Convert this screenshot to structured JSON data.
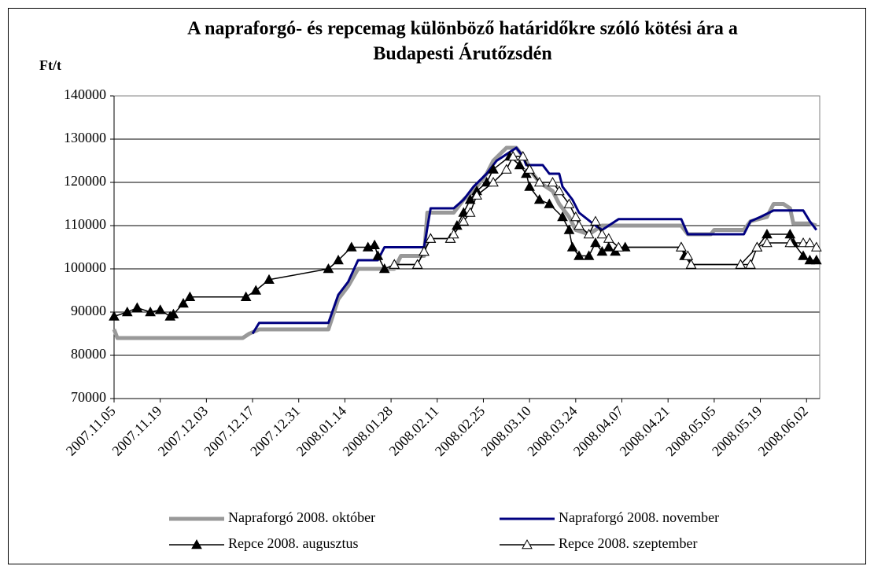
{
  "chart_data": {
    "type": "line",
    "title": [
      "A napraforgó- és repcemag különböző határidőkre szóló kötési ára a",
      "Budapesti Árutőzsdén"
    ],
    "ylabel": "Ft/t",
    "ylim": [
      70000,
      140000
    ],
    "yticks": [
      70000,
      80000,
      90000,
      100000,
      110000,
      120000,
      130000,
      140000
    ],
    "xlim": [
      "2007.11.05",
      "2008.06.06"
    ],
    "xticks": [
      "2007.11.05",
      "2007.11.19",
      "2007.12.03",
      "2007.12.17",
      "2007.12.31",
      "2008.01.14",
      "2008.01.28",
      "2008.02.11",
      "2008.02.25",
      "2008.03.10",
      "2008.03.24",
      "2008.04.07",
      "2008.04.21",
      "2008.05.05",
      "2008.05.19",
      "2008.06.02"
    ],
    "grid": true,
    "legend": "bottom",
    "series": [
      {
        "name": "Napraforgó 2008. október",
        "color": "#999999",
        "width": 5,
        "x": [
          "2007.11.05",
          "2007.11.06",
          "2007.12.14",
          "2007.12.16",
          "2007.12.19",
          "2008.01.09",
          "2008.01.12",
          "2008.01.15",
          "2008.01.18",
          "2008.01.29",
          "2008.01.31",
          "2008.02.07",
          "2008.02.08",
          "2008.02.16",
          "2008.02.19",
          "2008.02.22",
          "2008.02.26",
          "2008.02.28",
          "2008.03.03",
          "2008.03.06",
          "2008.03.09",
          "2008.03.11",
          "2008.03.13",
          "2008.03.17",
          "2008.03.19",
          "2008.03.22",
          "2008.03.24",
          "2008.03.28",
          "2008.04.01",
          "2008.04.25",
          "2008.04.27",
          "2008.05.04",
          "2008.05.05",
          "2008.05.14",
          "2008.05.16",
          "2008.05.21",
          "2008.05.23",
          "2008.05.26",
          "2008.05.28",
          "2008.05.29",
          "2008.06.03",
          "2008.06.05"
        ],
        "values": [
          86000,
          84000,
          84000,
          85000,
          86000,
          86000,
          93000,
          96000,
          100000,
          100000,
          103000,
          103000,
          113000,
          113000,
          116000,
          118000,
          122000,
          125000,
          128000,
          128000,
          125000,
          122000,
          120000,
          118000,
          115000,
          112000,
          109000,
          108000,
          110000,
          110000,
          108000,
          108000,
          109000,
          109000,
          111000,
          112000,
          115000,
          115000,
          114000,
          110500,
          110500,
          110000
        ]
      },
      {
        "name": "Napraforgó 2008. november",
        "color": "#000080",
        "width": 3,
        "x": [
          "2007.12.17",
          "2007.12.19",
          "2008.01.09",
          "2008.01.12",
          "2008.01.15",
          "2008.01.18",
          "2008.01.24",
          "2008.01.26",
          "2008.02.07",
          "2008.02.09",
          "2008.02.16",
          "2008.02.19",
          "2008.02.22",
          "2008.02.26",
          "2008.02.29",
          "2008.03.04",
          "2008.03.06",
          "2008.03.08",
          "2008.03.09",
          "2008.03.14",
          "2008.03.16",
          "2008.03.19",
          "2008.03.20",
          "2008.03.23",
          "2008.03.25",
          "2008.03.30",
          "2008.04.01",
          "2008.04.03",
          "2008.04.06",
          "2008.04.25",
          "2008.04.27",
          "2008.05.14",
          "2008.05.16",
          "2008.05.19",
          "2008.05.23",
          "2008.06.01",
          "2008.06.03",
          "2008.06.05"
        ],
        "values": [
          85000,
          87500,
          87500,
          94000,
          97000,
          102000,
          102000,
          105000,
          105000,
          114000,
          114000,
          116000,
          119000,
          122000,
          125000,
          127000,
          128000,
          126000,
          124000,
          124000,
          122000,
          122000,
          119000,
          116000,
          113000,
          110000,
          109000,
          110000,
          111500,
          111500,
          108000,
          108000,
          111000,
          112000,
          113500,
          113500,
          111000,
          109000
        ]
      },
      {
        "name": "Repce 2008. augusztus",
        "color": "#000000",
        "width": 1.5,
        "marker": "triangle",
        "marker_fill": "#000000",
        "x": [
          "2007.11.05",
          "2007.11.09",
          "2007.11.12",
          "2007.11.16",
          "2007.11.19",
          "2007.11.22",
          "2007.11.23",
          "2007.11.26",
          "2007.11.28",
          "2007.12.15",
          "2007.12.18",
          "2007.12.22",
          "2008.01.09",
          "2008.01.12",
          "2008.01.16",
          "2008.01.21",
          "2008.01.23",
          "2008.01.24",
          "2008.01.26",
          "2008.01.29",
          "2008.02.05",
          "2008.02.07",
          "2008.02.09",
          "2008.02.15",
          "2008.02.17",
          "2008.02.19",
          "2008.02.21",
          "2008.02.23",
          "2008.02.26",
          "2008.02.28",
          "2008.03.04",
          "2008.03.07",
          "2008.03.09",
          "2008.03.10",
          "2008.03.13",
          "2008.03.16",
          "2008.03.20",
          "2008.03.22",
          "2008.03.23",
          "2008.03.25",
          "2008.03.28",
          "2008.03.30",
          "2008.04.01",
          "2008.04.03",
          "2008.04.05",
          "2008.04.08",
          "2008.04.25",
          "2008.04.26",
          "2008.04.28",
          "2008.05.13",
          "2008.05.18",
          "2008.05.21",
          "2008.05.28",
          "2008.05.29",
          "2008.06.01",
          "2008.06.03",
          "2008.06.05"
        ],
        "values": [
          89000,
          90000,
          91000,
          90000,
          90500,
          89000,
          89500,
          92000,
          93500,
          93500,
          95000,
          97500,
          100000,
          102000,
          105000,
          105000,
          105500,
          103000,
          100000,
          101000,
          101000,
          104000,
          107000,
          107000,
          110000,
          113000,
          116000,
          118000,
          120000,
          123000,
          126000,
          124000,
          122000,
          119000,
          116000,
          115000,
          112000,
          109000,
          105000,
          103000,
          103000,
          106000,
          104000,
          105000,
          104000,
          105000,
          105000,
          103000,
          101000,
          101000,
          105000,
          108000,
          108000,
          106000,
          103000,
          102000,
          102000
        ]
      },
      {
        "name": "Repce 2008. szeptember",
        "color": "#000000",
        "width": 1.5,
        "marker": "triangle",
        "marker_fill": "#ffffff",
        "x": [
          "2008.01.29",
          "2008.02.05",
          "2008.02.07",
          "2008.02.09",
          "2008.02.15",
          "2008.02.16",
          "2008.02.19",
          "2008.02.21",
          "2008.02.23",
          "2008.02.28",
          "2008.03.03",
          "2008.03.05",
          "2008.03.08",
          "2008.03.10",
          "2008.03.13",
          "2008.03.17",
          "2008.03.19",
          "2008.03.22",
          "2008.03.24",
          "2008.03.25",
          "2008.03.28",
          "2008.03.30",
          "2008.04.01",
          "2008.04.03",
          "2008.04.06",
          "2008.04.25",
          "2008.04.27",
          "2008.04.28",
          "2008.05.13",
          "2008.05.16",
          "2008.05.18",
          "2008.05.21",
          "2008.05.28",
          "2008.06.01",
          "2008.06.03",
          "2008.06.05"
        ],
        "values": [
          101000,
          101000,
          104000,
          107000,
          107000,
          108000,
          111000,
          113000,
          117000,
          120000,
          123000,
          126000,
          126000,
          123000,
          120000,
          120000,
          118000,
          115000,
          112000,
          110000,
          108000,
          111000,
          108000,
          107000,
          105000,
          105000,
          103000,
          101000,
          101000,
          101000,
          105000,
          106000,
          106000,
          106000,
          106000,
          105000
        ]
      }
    ]
  }
}
